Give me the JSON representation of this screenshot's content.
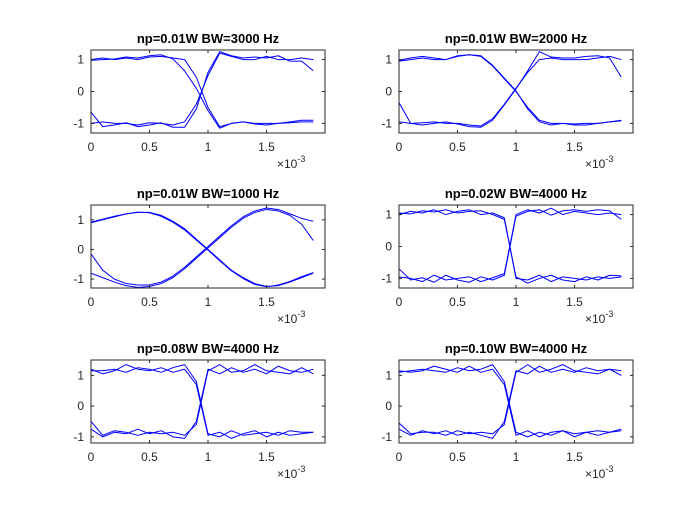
{
  "figure": {
    "background": "#ffffff"
  },
  "chart_data": [
    {
      "type": "line",
      "title": "np=0.01W BW=3000 Hz",
      "xlim": [
        0,
        0.002
      ],
      "ylim": [
        -1.3,
        1.3
      ],
      "xticks": [
        0,
        0.0005,
        0.001,
        0.0015
      ],
      "xticklabels": [
        "0",
        "0.5",
        "1",
        "1.5"
      ],
      "yticks": [
        -1,
        0,
        1
      ],
      "yticklabels": [
        "-1",
        "0",
        "1"
      ],
      "x_exponent": "×10",
      "x_exponent_power": "-3",
      "line_color": "#0000ff",
      "x": [
        0,
        0.0001,
        0.0002,
        0.0003,
        0.0004,
        0.0005,
        0.0006,
        0.0007,
        0.0008,
        0.0009,
        0.001,
        0.0011,
        0.0012,
        0.0013,
        0.0014,
        0.0015,
        0.0016,
        0.0017,
        0.0018,
        0.0019
      ],
      "series": [
        {
          "values": [
            1.0,
            1.05,
            1.0,
            1.05,
            1.0,
            1.08,
            1.1,
            1.05,
            1.0,
            0.45,
            -0.5,
            -1.1,
            -1.0,
            -0.95,
            -1.0,
            -1.0,
            -1.0,
            -0.98,
            -0.95,
            -0.95
          ]
        },
        {
          "values": [
            -1.0,
            -0.95,
            -1.0,
            -1.0,
            -1.05,
            -0.98,
            -1.0,
            -1.05,
            -0.95,
            -0.4,
            0.5,
            1.2,
            1.1,
            1.0,
            1.0,
            1.1,
            1.0,
            1.0,
            1.05,
            1.0
          ]
        },
        {
          "values": [
            0.98,
            1.0,
            1.02,
            1.08,
            1.05,
            1.12,
            1.15,
            1.02,
            0.65,
            0.1,
            -0.6,
            -1.15,
            -1.0,
            -0.95,
            -1.02,
            -1.05,
            -1.0,
            -0.95,
            -0.9,
            -0.9
          ]
        },
        {
          "values": [
            -0.65,
            -1.1,
            -1.05,
            -0.98,
            -1.1,
            -1.05,
            -0.98,
            -1.12,
            -1.12,
            -0.55,
            0.6,
            1.25,
            1.12,
            1.05,
            1.08,
            1.05,
            1.12,
            0.95,
            0.95,
            0.65
          ]
        }
      ]
    },
    {
      "type": "line",
      "title": "np=0.01W BW=2000 Hz",
      "xlim": [
        0,
        0.002
      ],
      "ylim": [
        -1.3,
        1.3
      ],
      "xticks": [
        0,
        0.0005,
        0.001,
        0.0015
      ],
      "xticklabels": [
        "0",
        "0.5",
        "1",
        "1.5"
      ],
      "yticks": [
        -1,
        0,
        1
      ],
      "yticklabels": [
        "-1",
        "0",
        "1"
      ],
      "x_exponent": "×10",
      "x_exponent_power": "-3",
      "line_color": "#0000ff",
      "x": [
        0,
        0.0001,
        0.0002,
        0.0003,
        0.0004,
        0.0005,
        0.0006,
        0.0007,
        0.0008,
        0.0009,
        0.001,
        0.0011,
        0.0012,
        0.0013,
        0.0014,
        0.0015,
        0.0016,
        0.0017,
        0.0018,
        0.0019
      ],
      "series": [
        {
          "values": [
            0.98,
            1.05,
            1.1,
            1.05,
            1.0,
            1.1,
            1.15,
            1.1,
            0.8,
            0.4,
            0.0,
            -0.5,
            -0.9,
            -1.0,
            -1.0,
            -1.05,
            -1.05,
            -1.0,
            -0.95,
            -0.9
          ]
        },
        {
          "values": [
            -0.95,
            -1.0,
            -0.98,
            -0.95,
            -1.0,
            -1.0,
            -1.05,
            -1.08,
            -0.85,
            -0.4,
            0.1,
            0.6,
            1.0,
            1.05,
            1.0,
            1.0,
            1.0,
            1.05,
            1.1,
            1.0
          ]
        },
        {
          "values": [
            0.95,
            1.0,
            1.05,
            1.0,
            1.0,
            1.12,
            1.15,
            1.12,
            0.82,
            0.42,
            0.02,
            -0.55,
            -0.95,
            -1.05,
            -1.0,
            -1.02,
            -1.0,
            -1.0,
            -0.95,
            -0.92
          ]
        },
        {
          "values": [
            -0.35,
            -1.0,
            -1.05,
            -1.0,
            -0.95,
            -1.02,
            -1.1,
            -1.12,
            -0.9,
            -0.42,
            0.08,
            0.65,
            1.25,
            1.08,
            1.05,
            1.05,
            1.1,
            1.12,
            1.05,
            0.45
          ]
        }
      ]
    },
    {
      "type": "line",
      "title": "np=0.01W BW=1000 Hz",
      "xlim": [
        0,
        0.002
      ],
      "ylim": [
        -1.3,
        1.5
      ],
      "xticks": [
        0,
        0.0005,
        0.001,
        0.0015
      ],
      "xticklabels": [
        "0",
        "0.5",
        "1",
        "1.5"
      ],
      "yticks": [
        -1,
        0,
        1
      ],
      "yticklabels": [
        "-1",
        "0",
        "1"
      ],
      "x_exponent": "×10",
      "x_exponent_power": "-3",
      "line_color": "#0000ff",
      "x": [
        0,
        0.0001,
        0.0002,
        0.0003,
        0.0004,
        0.0005,
        0.0006,
        0.0007,
        0.0008,
        0.0009,
        0.001,
        0.0011,
        0.0012,
        0.0013,
        0.0014,
        0.0015,
        0.0016,
        0.0017,
        0.0018,
        0.0019
      ],
      "series": [
        {
          "values": [
            0.9,
            1.0,
            1.1,
            1.2,
            1.25,
            1.25,
            1.15,
            0.95,
            0.7,
            0.35,
            0.0,
            -0.35,
            -0.7,
            -0.95,
            -1.15,
            -1.25,
            -1.22,
            -1.1,
            -0.95,
            -0.8
          ]
        },
        {
          "values": [
            -0.8,
            -0.95,
            -1.1,
            -1.22,
            -1.28,
            -1.25,
            -1.15,
            -0.95,
            -0.65,
            -0.3,
            0.05,
            0.4,
            0.75,
            1.05,
            1.25,
            1.35,
            1.3,
            1.15,
            0.85,
            0.3
          ]
        },
        {
          "values": [
            0.92,
            1.02,
            1.12,
            1.2,
            1.26,
            1.24,
            1.12,
            0.92,
            0.66,
            0.32,
            -0.02,
            -0.38,
            -0.72,
            -0.98,
            -1.18,
            -1.26,
            -1.2,
            -1.08,
            -0.92,
            -0.78
          ]
        },
        {
          "values": [
            -0.15,
            -0.7,
            -1.0,
            -1.15,
            -1.2,
            -1.2,
            -1.1,
            -0.9,
            -0.6,
            -0.25,
            0.1,
            0.45,
            0.8,
            1.1,
            1.3,
            1.4,
            1.35,
            1.2,
            1.05,
            0.95
          ]
        }
      ]
    },
    {
      "type": "line",
      "title": "np=0.02W BW=4000 Hz",
      "xlim": [
        0,
        0.002
      ],
      "ylim": [
        -1.3,
        1.3
      ],
      "xticks": [
        0,
        0.0005,
        0.001,
        0.0015
      ],
      "xticklabels": [
        "0",
        "0.5",
        "1",
        "1.5"
      ],
      "yticks": [
        -1,
        0,
        1
      ],
      "yticklabels": [
        "-1",
        "0",
        "1"
      ],
      "x_exponent": "×10",
      "x_exponent_power": "-3",
      "line_color": "#0000ff",
      "x": [
        0,
        0.0001,
        0.0002,
        0.0003,
        0.0004,
        0.0005,
        0.0006,
        0.0007,
        0.0008,
        0.0009,
        0.001,
        0.0011,
        0.0012,
        0.0013,
        0.0014,
        0.0015,
        0.0016,
        0.0017,
        0.0018,
        0.0019
      ],
      "series": [
        {
          "values": [
            1.0,
            1.1,
            1.05,
            1.15,
            1.0,
            1.1,
            1.15,
            1.0,
            1.05,
            0.9,
            -1.0,
            -1.05,
            -0.9,
            -1.1,
            -0.95,
            -1.0,
            -1.05,
            -0.95,
            -1.0,
            -0.95
          ]
        },
        {
          "values": [
            -0.95,
            -1.0,
            -1.1,
            -0.9,
            -1.05,
            -1.0,
            -0.95,
            -1.1,
            -0.98,
            -0.85,
            1.0,
            1.15,
            1.05,
            1.2,
            1.0,
            1.1,
            1.05,
            1.0,
            1.05,
            1.0
          ]
        },
        {
          "values": [
            1.05,
            1.02,
            1.12,
            1.08,
            1.15,
            1.05,
            1.1,
            1.12,
            1.0,
            0.85,
            -0.95,
            -1.15,
            -1.0,
            -0.9,
            -1.05,
            -1.1,
            -0.95,
            -1.05,
            -0.9,
            -0.92
          ]
        },
        {
          "values": [
            -0.7,
            -1.05,
            -0.98,
            -1.12,
            -0.9,
            -1.05,
            -1.12,
            -0.95,
            -1.05,
            -0.9,
            0.95,
            1.1,
            1.15,
            0.98,
            1.12,
            1.15,
            1.1,
            1.15,
            1.12,
            0.85
          ]
        }
      ]
    },
    {
      "type": "line",
      "title": "np=0.08W BW=4000 Hz",
      "xlim": [
        0,
        0.002
      ],
      "ylim": [
        -1.2,
        1.5
      ],
      "xticks": [
        0,
        0.0005,
        0.001,
        0.0015
      ],
      "xticklabels": [
        "0",
        "0.5",
        "1",
        "1.5"
      ],
      "yticks": [
        -1,
        0,
        1
      ],
      "yticklabels": [
        "-1",
        "0",
        "1"
      ],
      "x_exponent": "×10",
      "x_exponent_power": "-3",
      "line_color": "#0000ff",
      "x": [
        0,
        0.0001,
        0.0002,
        0.0003,
        0.0004,
        0.0005,
        0.0006,
        0.0007,
        0.0008,
        0.0009,
        0.001,
        0.0011,
        0.0012,
        0.0013,
        0.0014,
        0.0015,
        0.0016,
        0.0017,
        0.0018,
        0.0019
      ],
      "series": [
        {
          "values": [
            1.15,
            1.15,
            1.2,
            1.1,
            1.25,
            1.2,
            1.1,
            1.25,
            1.35,
            0.8,
            -0.9,
            -1.0,
            -0.8,
            -0.95,
            -0.9,
            -0.85,
            -0.95,
            -0.8,
            -0.85,
            -0.85
          ]
        },
        {
          "values": [
            -0.75,
            -1.0,
            -0.85,
            -0.9,
            -0.75,
            -0.9,
            -0.8,
            -1.0,
            -1.05,
            -0.5,
            1.2,
            1.05,
            1.25,
            1.1,
            1.2,
            1.05,
            1.3,
            1.15,
            1.1,
            1.2
          ]
        },
        {
          "values": [
            1.2,
            1.05,
            1.15,
            1.35,
            1.2,
            1.15,
            1.25,
            1.1,
            1.2,
            0.7,
            -0.95,
            -0.85,
            -1.05,
            -0.9,
            -0.8,
            -1.0,
            -0.85,
            -0.95,
            -0.9,
            -0.85
          ]
        },
        {
          "values": [
            -0.5,
            -0.95,
            -0.8,
            -0.85,
            -0.95,
            -0.85,
            -0.9,
            -0.85,
            -0.95,
            -0.6,
            1.15,
            1.35,
            1.1,
            1.15,
            1.35,
            1.15,
            1.1,
            1.05,
            1.25,
            1.05
          ]
        }
      ]
    },
    {
      "type": "line",
      "title": "np=0.10W BW=4000 Hz",
      "xlim": [
        0,
        0.002
      ],
      "ylim": [
        -1.2,
        1.5
      ],
      "xticks": [
        0,
        0.0005,
        0.001,
        0.0015
      ],
      "xticklabels": [
        "0",
        "0.5",
        "1",
        "1.5"
      ],
      "yticks": [
        -1,
        0,
        1
      ],
      "yticklabels": [
        "-1",
        "0",
        "1"
      ],
      "x_exponent": "×10",
      "x_exponent_power": "-3",
      "line_color": "#0000ff",
      "x": [
        0,
        0.0001,
        0.0002,
        0.0003,
        0.0004,
        0.0005,
        0.0006,
        0.0007,
        0.0008,
        0.0009,
        0.001,
        0.0011,
        0.0012,
        0.0013,
        0.0014,
        0.0015,
        0.0016,
        0.0017,
        0.0018,
        0.0019
      ],
      "series": [
        {
          "values": [
            1.1,
            1.15,
            1.2,
            1.15,
            1.1,
            1.25,
            1.15,
            1.2,
            1.35,
            0.8,
            -0.85,
            -1.0,
            -0.85,
            -0.95,
            -0.8,
            -0.9,
            -0.85,
            -0.8,
            -0.85,
            -0.8
          ]
        },
        {
          "values": [
            -0.75,
            -0.95,
            -0.8,
            -0.9,
            -0.8,
            -0.95,
            -0.85,
            -0.95,
            -1.05,
            -0.5,
            1.15,
            1.05,
            1.3,
            1.1,
            1.2,
            1.1,
            1.25,
            1.15,
            1.2,
            1.15
          ]
        },
        {
          "values": [
            1.15,
            1.1,
            1.15,
            1.3,
            1.2,
            1.1,
            1.3,
            1.1,
            1.2,
            0.7,
            -0.95,
            -0.8,
            -1.0,
            -0.85,
            -0.8,
            -1.0,
            -0.85,
            -0.95,
            -0.85,
            -0.75
          ]
        },
        {
          "values": [
            -0.55,
            -0.9,
            -0.85,
            -0.85,
            -0.95,
            -0.8,
            -0.9,
            -0.85,
            -0.9,
            -0.6,
            1.1,
            1.35,
            1.1,
            1.2,
            1.35,
            1.15,
            1.1,
            1.05,
            1.2,
            1.0
          ]
        }
      ]
    }
  ]
}
